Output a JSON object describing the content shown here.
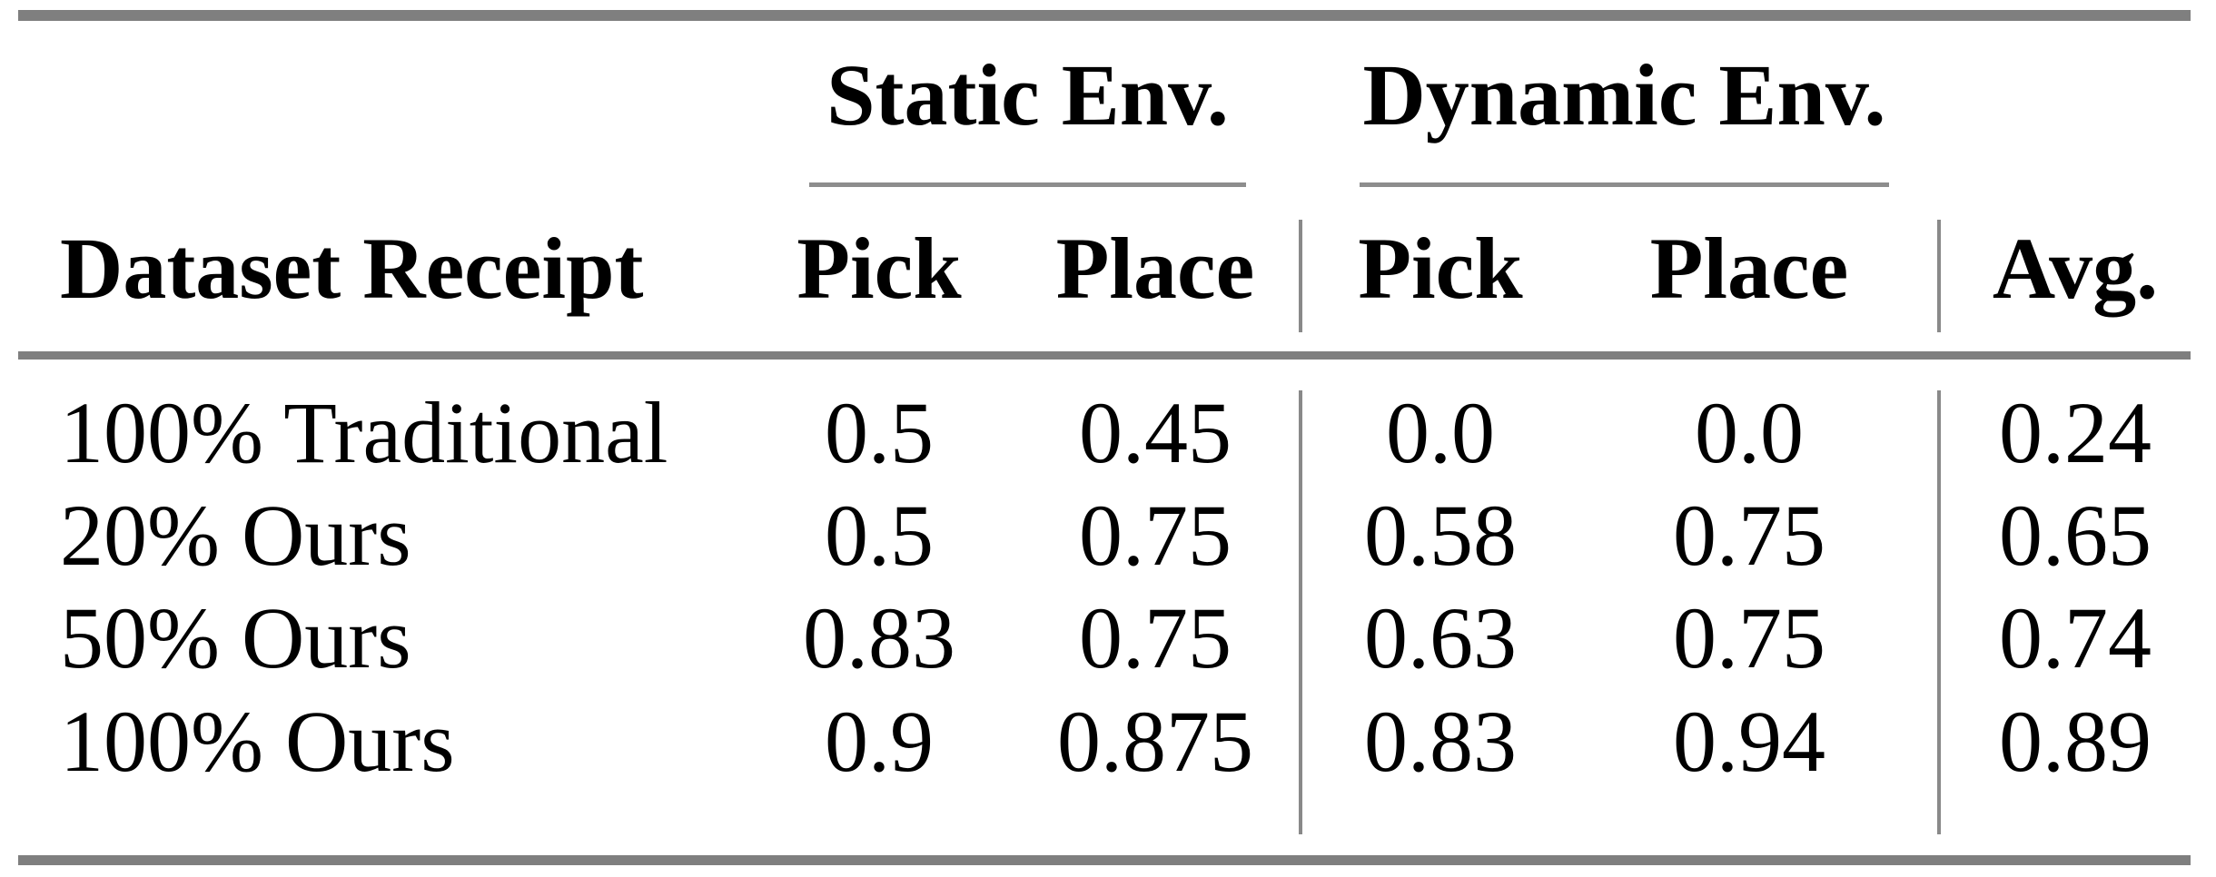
{
  "table": {
    "title_context": "Pick-and-place success rates table",
    "column_groups": [
      {
        "label": "Static Env.",
        "columns": [
          "Pick",
          "Place"
        ]
      },
      {
        "label": "Dynamic Env.",
        "columns": [
          "Pick",
          "Place"
        ]
      }
    ],
    "header": {
      "row_label_column": "Dataset Receipt",
      "static_pick": "Pick",
      "static_place": "Place",
      "dynamic_pick": "Pick",
      "dynamic_place": "Place",
      "avg": "Avg."
    },
    "rows": [
      {
        "label": "100% Traditional",
        "values": [
          "0.5",
          "0.45",
          "0.0",
          "0.0",
          "0.24"
        ]
      },
      {
        "label": "20% Ours",
        "values": [
          "0.5",
          "0.75",
          "0.58",
          "0.75",
          "0.65"
        ]
      },
      {
        "label": "50% Ours",
        "values": [
          "0.83",
          "0.75",
          "0.63",
          "0.75",
          "0.74"
        ]
      },
      {
        "label": "100% Ours",
        "values": [
          "0.9",
          "0.875",
          "0.83",
          "0.94",
          "0.89"
        ]
      }
    ],
    "colors": {
      "rule_gray": "#7f7f7f",
      "text": "#000000",
      "background": "#ffffff"
    }
  },
  "chart_data": {
    "type": "table",
    "title": "",
    "columns": [
      "Dataset Receipt",
      "Static Env. Pick",
      "Static Env. Place",
      "Dynamic Env. Pick",
      "Dynamic Env. Place",
      "Avg."
    ],
    "rows": [
      [
        "100% Traditional",
        0.5,
        0.45,
        0.0,
        0.0,
        0.24
      ],
      [
        "20% Ours",
        0.5,
        0.75,
        0.58,
        0.75,
        0.65
      ],
      [
        "50% Ours",
        0.83,
        0.75,
        0.63,
        0.75,
        0.74
      ],
      [
        "100% Ours",
        0.9,
        0.875,
        0.83,
        0.94,
        0.89
      ]
    ]
  }
}
